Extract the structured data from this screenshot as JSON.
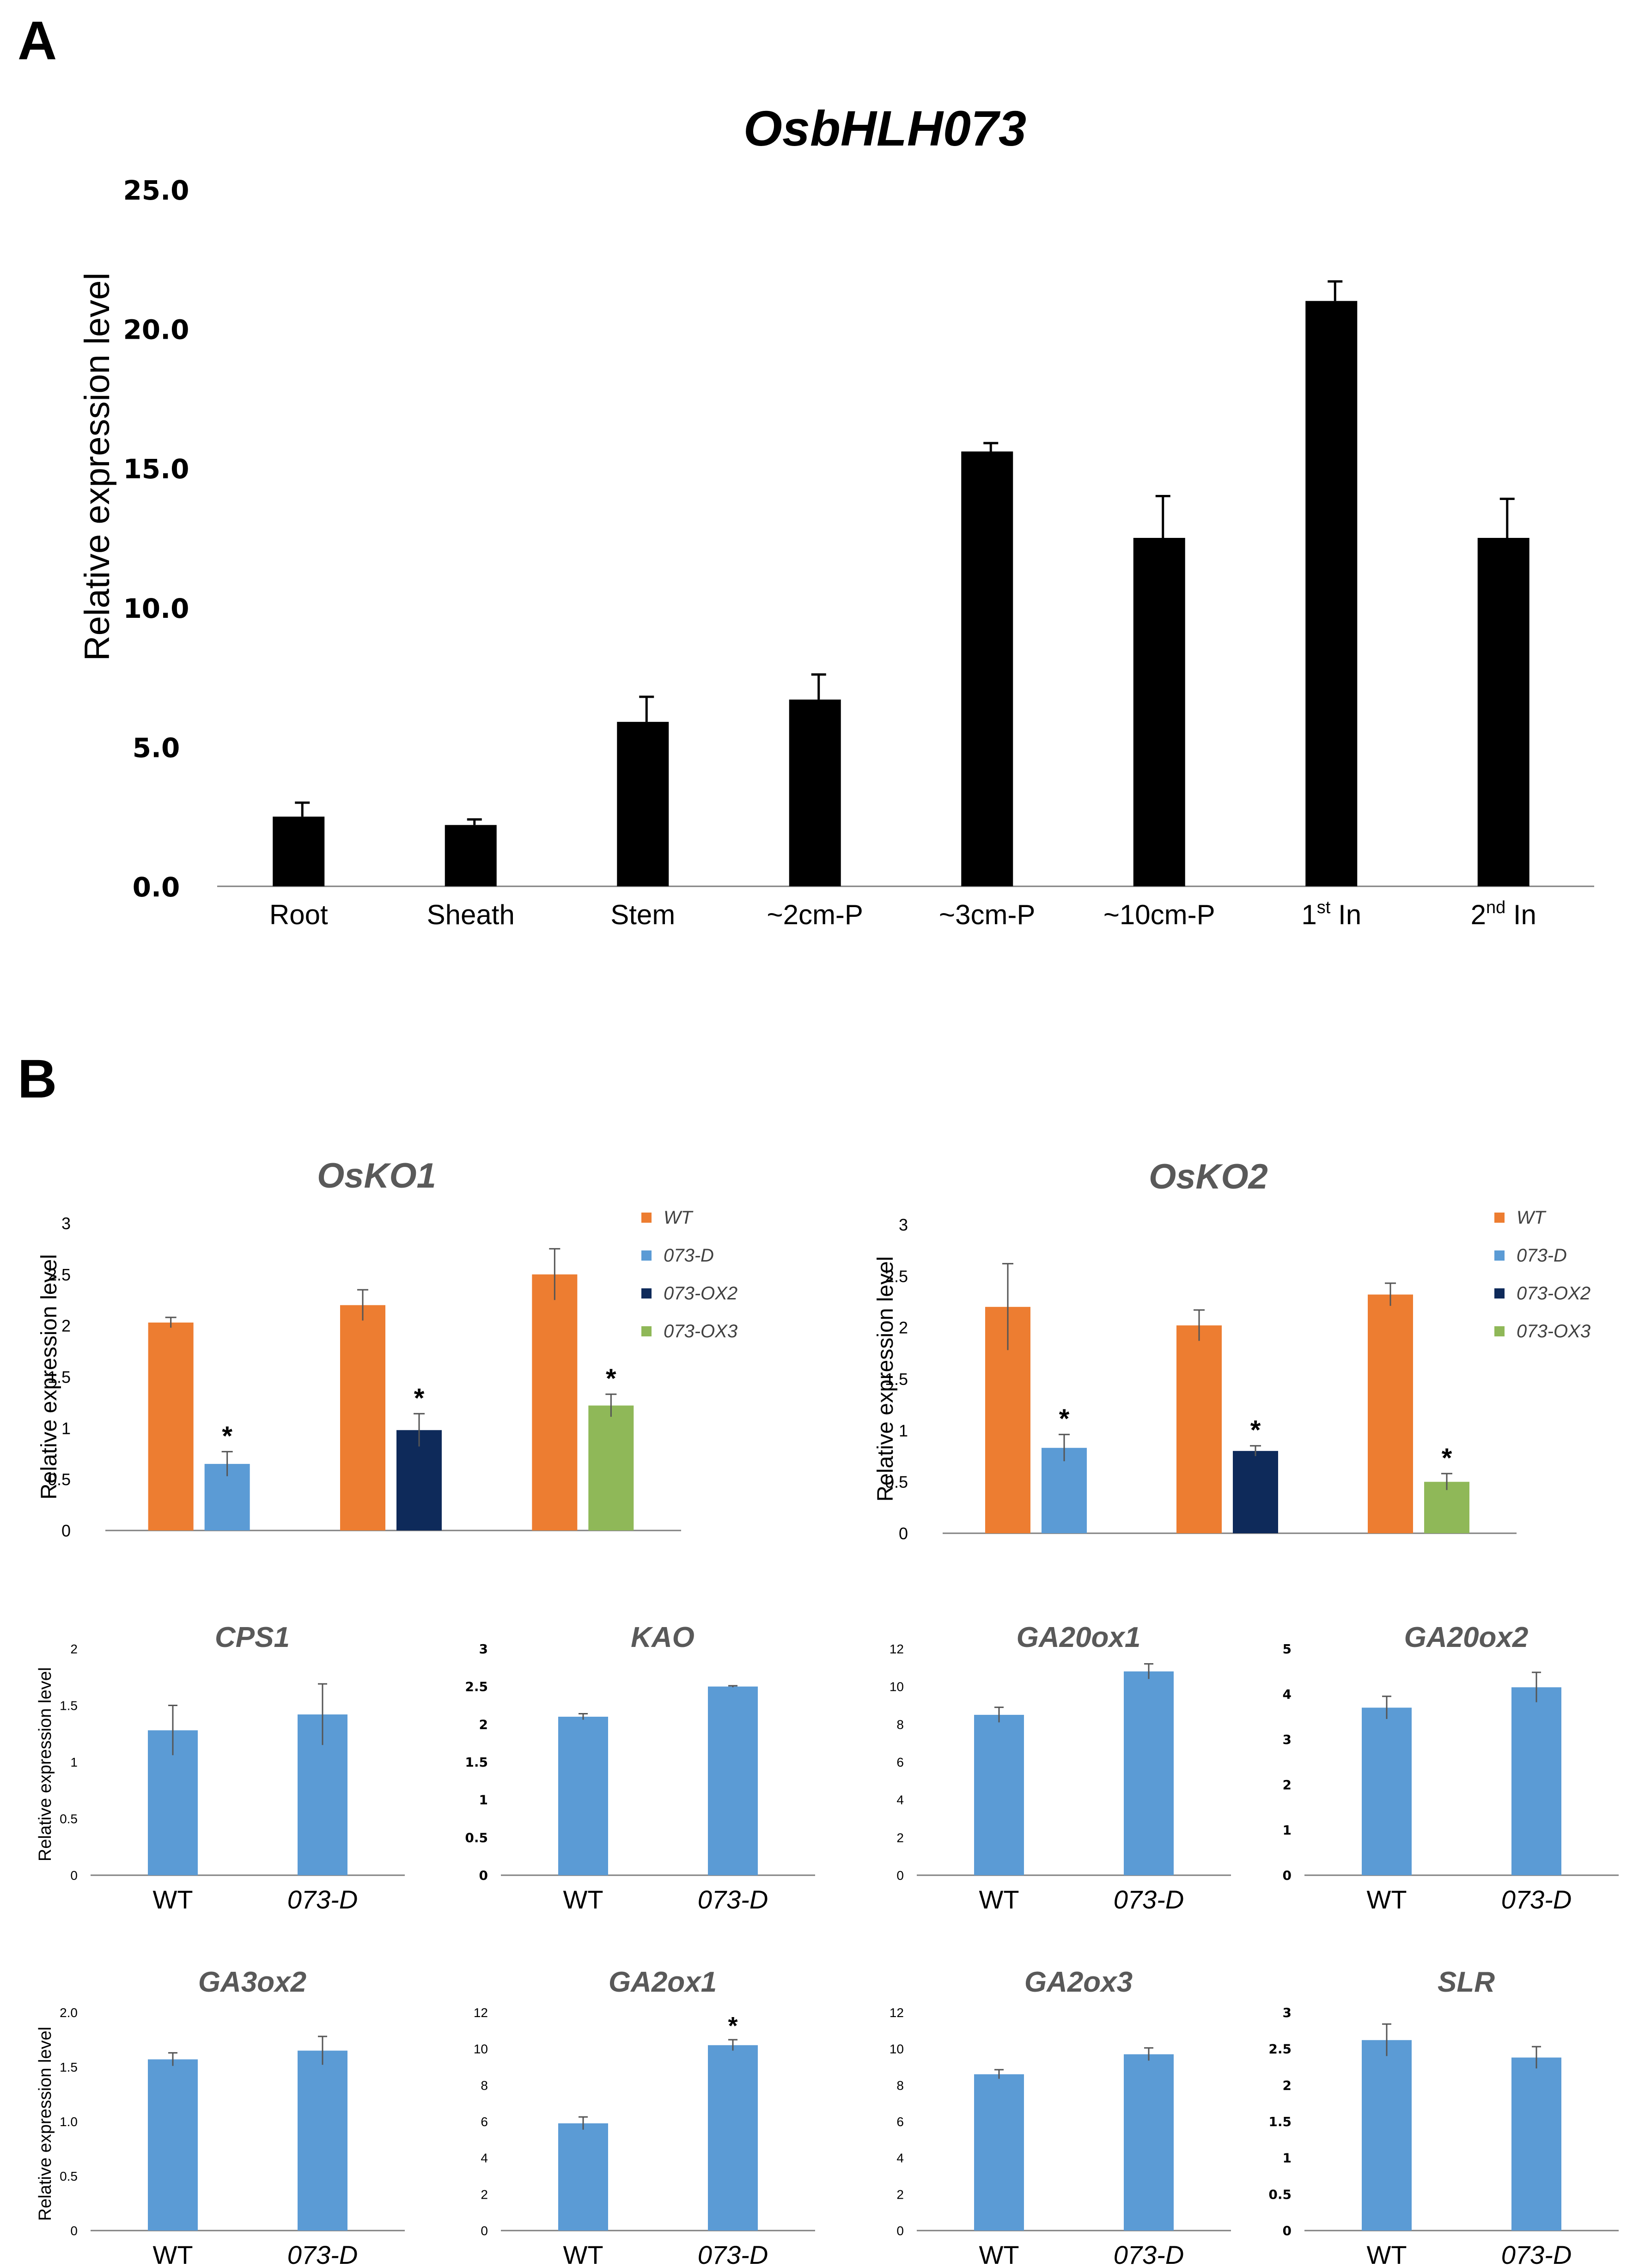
{
  "panels": [
    {
      "label": "A",
      "chart_data": {
        "type": "bar",
        "title": "OsbHLH073",
        "ylabel": "Relative expression level",
        "ylim": [
          0,
          25
        ],
        "yticks": [
          "0.0",
          "5.0",
          "10.0",
          "15.0",
          "20.0",
          "25.0"
        ],
        "categories": [
          {
            "label": "Root",
            "sup": "",
            "tail": ""
          },
          {
            "label": "Sheath",
            "sup": "",
            "tail": ""
          },
          {
            "label": "Stem",
            "sup": "",
            "tail": ""
          },
          {
            "label": "~2cm-P",
            "sup": "",
            "tail": ""
          },
          {
            "label": "~3cm-P",
            "sup": "",
            "tail": ""
          },
          {
            "label": "~10cm-P",
            "sup": "",
            "tail": ""
          },
          {
            "label": "1",
            "sup": "st",
            "tail": " In"
          },
          {
            "label": "2",
            "sup": "nd",
            "tail": " In"
          }
        ],
        "values": [
          2.5,
          2.2,
          5.9,
          6.7,
          15.6,
          12.5,
          21.0,
          12.5
        ],
        "errors": [
          0.5,
          0.2,
          0.9,
          0.9,
          0.3,
          1.5,
          0.7,
          1.4
        ],
        "color": "#000000"
      }
    },
    {
      "label": "B",
      "legend": [
        {
          "name": "WT",
          "color": "#ed7d31"
        },
        {
          "name": "073-D",
          "color": "#5b9bd5"
        },
        {
          "name": "073-OX2",
          "color": "#0e2a5a"
        },
        {
          "name": "073-OX3",
          "color": "#8fb858"
        }
      ],
      "charts": [
        {
          "type": "bar",
          "title": "OsKO1",
          "ylabel": "Relative expression level",
          "ylim": [
            0,
            3
          ],
          "yticks": [
            "0",
            "0.5",
            "1",
            "1.5",
            "2",
            "2.5",
            "3"
          ],
          "groups": [
            {
              "bars": [
                {
                  "series": "WT",
                  "value": 2.03,
                  "error": 0.05,
                  "star": ""
                },
                {
                  "series": "073-D",
                  "value": 0.65,
                  "error": 0.12,
                  "star": "*"
                }
              ]
            },
            {
              "bars": [
                {
                  "series": "WT",
                  "value": 2.2,
                  "error": 0.15,
                  "star": ""
                },
                {
                  "series": "073-OX2",
                  "value": 0.98,
                  "error": 0.16,
                  "star": "*"
                }
              ]
            },
            {
              "bars": [
                {
                  "series": "WT",
                  "value": 2.5,
                  "error": 0.25,
                  "star": ""
                },
                {
                  "series": "073-OX3",
                  "value": 1.22,
                  "error": 0.11,
                  "star": "*"
                }
              ]
            }
          ]
        },
        {
          "type": "bar",
          "title": "OsKO2",
          "ylabel": "Relative expression level",
          "ylim": [
            0,
            3
          ],
          "yticks": [
            "0",
            "0.5",
            "1",
            "1.5",
            "2",
            "2.5",
            "3"
          ],
          "groups": [
            {
              "bars": [
                {
                  "series": "WT",
                  "value": 2.2,
                  "error": 0.42,
                  "star": ""
                },
                {
                  "series": "073-D",
                  "value": 0.83,
                  "error": 0.13,
                  "star": "*"
                }
              ]
            },
            {
              "bars": [
                {
                  "series": "WT",
                  "value": 2.02,
                  "error": 0.15,
                  "star": ""
                },
                {
                  "series": "073-OX2",
                  "value": 0.8,
                  "error": 0.05,
                  "star": "*"
                }
              ]
            },
            {
              "bars": [
                {
                  "series": "WT",
                  "value": 2.32,
                  "error": 0.11,
                  "star": ""
                },
                {
                  "series": "073-OX3",
                  "value": 0.5,
                  "error": 0.08,
                  "star": "*"
                }
              ]
            }
          ]
        },
        {
          "type": "bar",
          "title": "CPS1",
          "ylabel": "Relative expression level",
          "ylim": [
            0,
            2
          ],
          "yticks": [
            "0",
            "0.5",
            "1",
            "1.5",
            "2"
          ],
          "categories": [
            "WT",
            "073-D"
          ],
          "values": [
            1.28,
            1.42
          ],
          "errors": [
            0.22,
            0.27
          ],
          "stars": [
            "",
            ""
          ],
          "color": "#5b9bd5"
        },
        {
          "type": "bar",
          "title": "KAO",
          "ylabel": "",
          "ylim": [
            0,
            3
          ],
          "yticks": [
            "0",
            "0.5",
            "1",
            "1.5",
            "2",
            "2.5",
            "3"
          ],
          "categories": [
            "WT",
            "073-D"
          ],
          "values": [
            2.1,
            2.5
          ],
          "errors": [
            0.04,
            0.01
          ],
          "stars": [
            "",
            ""
          ],
          "color": "#5b9bd5"
        },
        {
          "type": "bar",
          "title": "GA20ox1",
          "ylabel": "",
          "ylim": [
            0,
            12
          ],
          "yticks": [
            "0",
            "2",
            "4",
            "6",
            "8",
            "10",
            "12"
          ],
          "categories": [
            "WT",
            "073-D"
          ],
          "values": [
            8.5,
            10.8
          ],
          "errors": [
            0.4,
            0.4
          ],
          "stars": [
            "",
            ""
          ],
          "color": "#5b9bd5"
        },
        {
          "type": "bar",
          "title": "GA20ox2",
          "ylabel": "",
          "ylim": [
            0,
            5
          ],
          "yticks": [
            "0",
            "1",
            "2",
            "3",
            "4",
            "5"
          ],
          "categories": [
            "WT",
            "073-D"
          ],
          "values": [
            3.7,
            4.15
          ],
          "errors": [
            0.25,
            0.33
          ],
          "stars": [
            "",
            ""
          ],
          "color": "#5b9bd5"
        },
        {
          "type": "bar",
          "title": "GA3ox2",
          "ylabel": "Relative expression level",
          "ylim": [
            0,
            2
          ],
          "yticks": [
            "0",
            "0.5",
            "1.0",
            "1.5",
            "2.0"
          ],
          "categories": [
            "WT",
            "073-D"
          ],
          "values": [
            1.57,
            1.65
          ],
          "errors": [
            0.06,
            0.13
          ],
          "stars": [
            "",
            ""
          ],
          "color": "#5b9bd5"
        },
        {
          "type": "bar",
          "title": "GA2ox1",
          "ylabel": "",
          "ylim": [
            0,
            12
          ],
          "yticks": [
            "0",
            "2",
            "4",
            "6",
            "8",
            "10",
            "12"
          ],
          "categories": [
            "WT",
            "073-D"
          ],
          "values": [
            5.9,
            10.2
          ],
          "errors": [
            0.35,
            0.3
          ],
          "stars": [
            "",
            "*"
          ],
          "color": "#5b9bd5"
        },
        {
          "type": "bar",
          "title": "GA2ox3",
          "ylabel": "",
          "ylim": [
            0,
            12
          ],
          "yticks": [
            "0",
            "2",
            "4",
            "6",
            "8",
            "10",
            "12"
          ],
          "categories": [
            "WT",
            "073-D"
          ],
          "values": [
            8.6,
            9.7
          ],
          "errors": [
            0.25,
            0.35
          ],
          "stars": [
            "",
            ""
          ],
          "color": "#5b9bd5"
        },
        {
          "type": "bar",
          "title": "SLR",
          "ylabel": "",
          "ylim": [
            0,
            3
          ],
          "yticks": [
            "0",
            "0.5",
            "1",
            "1.5",
            "2",
            "2.5",
            "3"
          ],
          "categories": [
            "WT",
            "073-D"
          ],
          "values": [
            2.62,
            2.38
          ],
          "errors": [
            0.22,
            0.15
          ],
          "stars": [
            "",
            ""
          ],
          "color": "#5b9bd5"
        }
      ]
    }
  ]
}
